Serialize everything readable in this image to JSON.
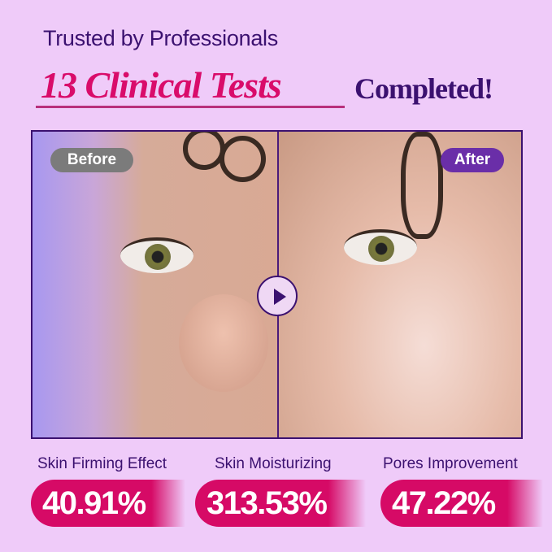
{
  "header": {
    "line1": "Trusted by Professionals",
    "highlight": "13 Clinical Tests",
    "suffix": "Completed!"
  },
  "comparison": {
    "before_label": "Before",
    "after_label": "After",
    "center_icon": "play-icon"
  },
  "stats": [
    {
      "label": "Skin Firming Effect",
      "value": "40.91%"
    },
    {
      "label": "Skin Moisturizing",
      "value": "313.53%"
    },
    {
      "label": "Pores Improvement",
      "value": "47.22%"
    }
  ],
  "colors": {
    "background": "#efcbf9",
    "accent": "#d60a66",
    "primary": "#3b1170",
    "after_badge": "#6a2ea8"
  }
}
